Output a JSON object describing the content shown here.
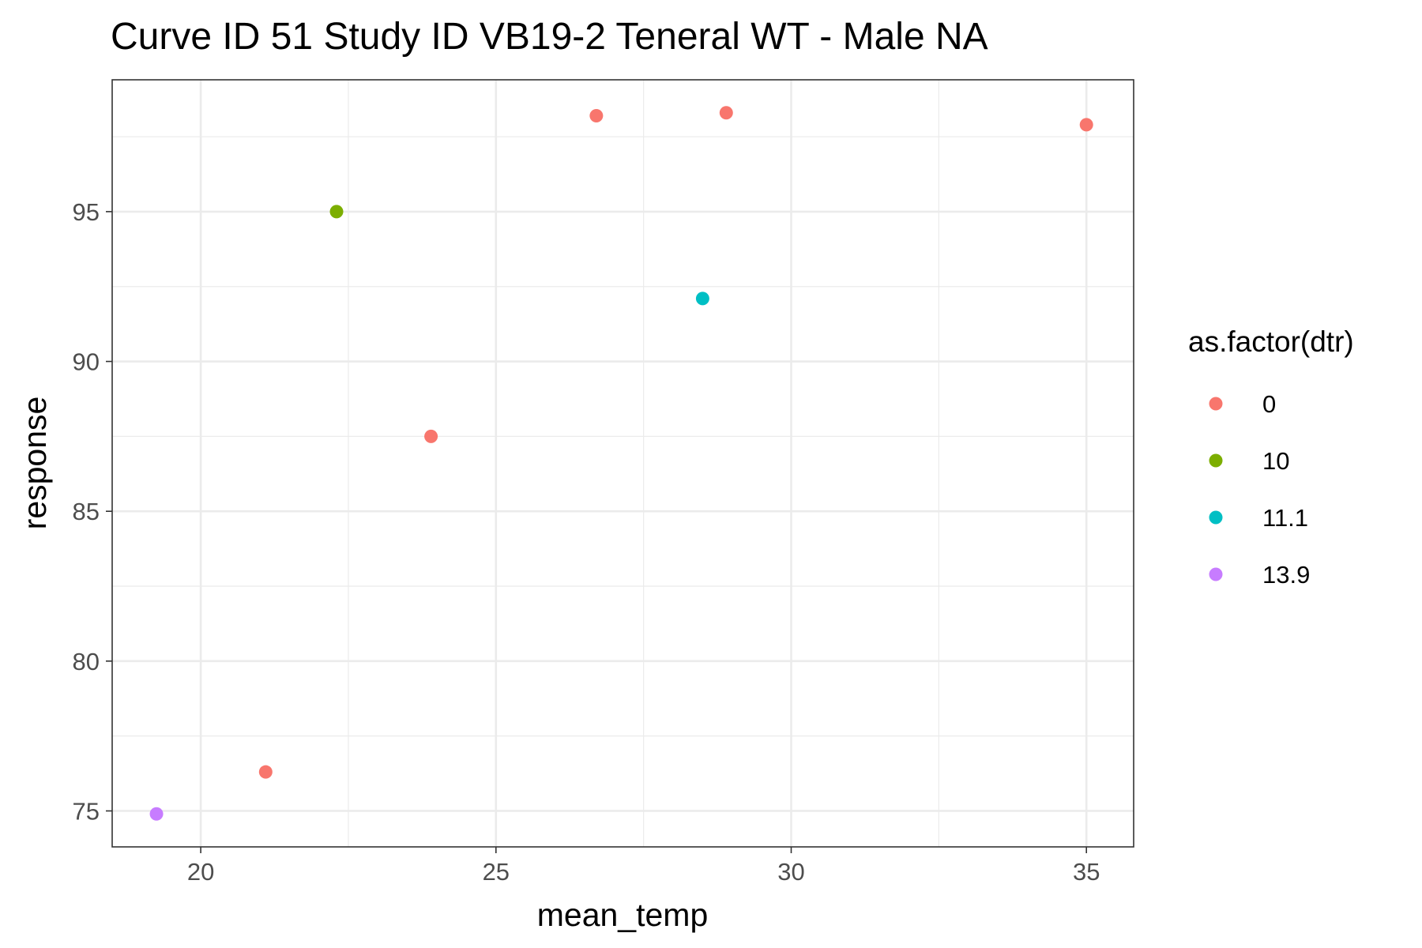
{
  "chart_data": {
    "type": "scatter",
    "title": "Curve ID 51 Study ID VB19-2 Teneral WT - Male NA",
    "xlabel": "mean_temp",
    "ylabel": "response",
    "xlim": [
      18.5,
      35.8
    ],
    "ylim": [
      73.8,
      99.4
    ],
    "x_ticks": [
      "20",
      "25",
      "30",
      "35"
    ],
    "y_ticks": [
      "75",
      "80",
      "85",
      "90",
      "95"
    ],
    "grid": true,
    "legend": {
      "title": "as.factor(dtr)",
      "placement": "right",
      "entries": [
        {
          "label": "0",
          "color": "#F8766D"
        },
        {
          "label": "10",
          "color": "#7CAE00"
        },
        {
          "label": "11.1",
          "color": "#00BFC4"
        },
        {
          "label": "13.9",
          "color": "#C77CFF"
        }
      ]
    },
    "points": [
      {
        "x": 19.25,
        "y": 74.9,
        "dtr": "13.9"
      },
      {
        "x": 21.1,
        "y": 76.3,
        "dtr": "0"
      },
      {
        "x": 22.3,
        "y": 95.0,
        "dtr": "10"
      },
      {
        "x": 23.9,
        "y": 87.5,
        "dtr": "0"
      },
      {
        "x": 26.7,
        "y": 98.2,
        "dtr": "0"
      },
      {
        "x": 28.5,
        "y": 92.1,
        "dtr": "11.1"
      },
      {
        "x": 28.9,
        "y": 98.3,
        "dtr": "0"
      },
      {
        "x": 35.0,
        "y": 97.9,
        "dtr": "0"
      }
    ]
  }
}
